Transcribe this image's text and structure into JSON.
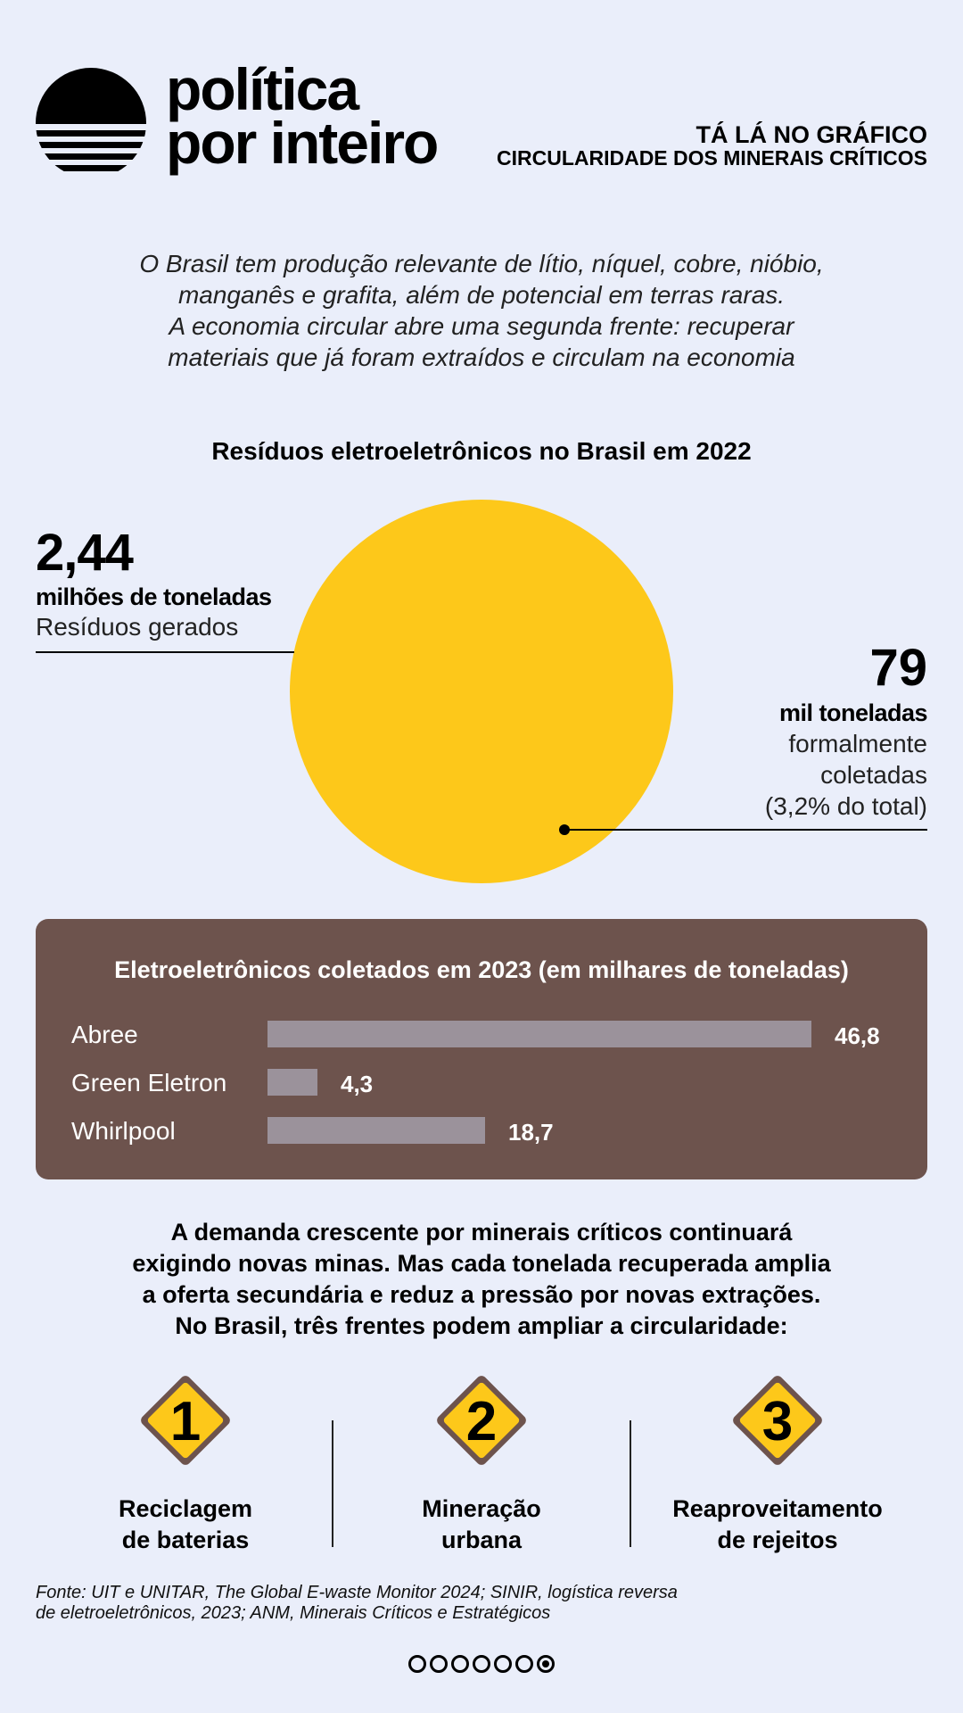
{
  "header": {
    "brand_line1": "política",
    "brand_line2": "por inteiro",
    "kicker_line1": "TÁ LÁ NO GRÁFICO",
    "kicker_line2": "CIRCULARIDADE DOS MINERAIS CRÍTICOS"
  },
  "intro": {
    "lines": [
      "O Brasil tem produção relevante de lítio, níquel, cobre, nióbio,",
      "manganês e grafita, além de potencial em terras raras.",
      "A economia circular abre uma segunda frente: recuperar",
      "materiais que já foram extraídos e circulam na economia"
    ]
  },
  "circle_section": {
    "title": "Resíduos eletroeletrônicos no Brasil em 2022",
    "left": {
      "number": "2,44",
      "unit": "milhões de toneladas",
      "desc": "Resíduos gerados"
    },
    "right": {
      "number": "79",
      "unit": "mil toneladas",
      "desc_lines": [
        "formalmente",
        "coletadas",
        "(3,2% do total)"
      ]
    }
  },
  "panel": {
    "title": "Eletroeletrônicos coletados em 2023 (em milhares de toneladas)"
  },
  "chart_data": [
    {
      "type": "pie",
      "title": "Resíduos eletroeletrônicos no Brasil em 2022",
      "values": [
        2440,
        79
      ],
      "labels": [
        "Resíduos gerados",
        "formalmente coletadas"
      ],
      "units": [
        "milhões de toneladas",
        "mil toneladas"
      ],
      "note": "(3,2% do total)"
    },
    {
      "type": "bar",
      "orientation": "horizontal",
      "title": "Eletroeletrônicos coletados em 2023 (em milhares de toneladas)",
      "categories": [
        "Abree",
        "Green Eletron",
        "Whirlpool"
      ],
      "values": [
        46.8,
        4.3,
        18.7
      ],
      "value_labels": [
        "46,8",
        "4,3",
        "18,7"
      ],
      "xlim": [
        0,
        46.8
      ]
    }
  ],
  "bottom_text": {
    "lines": [
      "A demanda crescente por minerais críticos continuará",
      "exigindo novas minas. Mas cada tonelada recuperada amplia",
      "a oferta secundária e reduz a pressão por novas extrações.",
      "No Brasil, três frentes podem ampliar a circularidade:"
    ]
  },
  "fronts": [
    {
      "number": "1",
      "lines": [
        "Reciclagem",
        "de baterias"
      ]
    },
    {
      "number": "2",
      "lines": [
        "Mineração",
        "urbana"
      ]
    },
    {
      "number": "3",
      "lines": [
        "Reaproveitamento",
        "de rejeitos"
      ]
    }
  ],
  "source": {
    "lines": [
      "Fonte: UIT e UNITAR, The Global E-waste Monitor 2024; SINIR, logística reversa",
      "de eletroeletrônicos, 2023; ANM, Minerais Críticos e Estratégicos"
    ]
  },
  "pager": {
    "total": 7,
    "active": 7
  },
  "colors": {
    "background": "#eaeefa",
    "yellow": "#fdc81a",
    "panel": "#6d534d",
    "bar": "#9b929b",
    "sign_border": "#6d534d"
  }
}
